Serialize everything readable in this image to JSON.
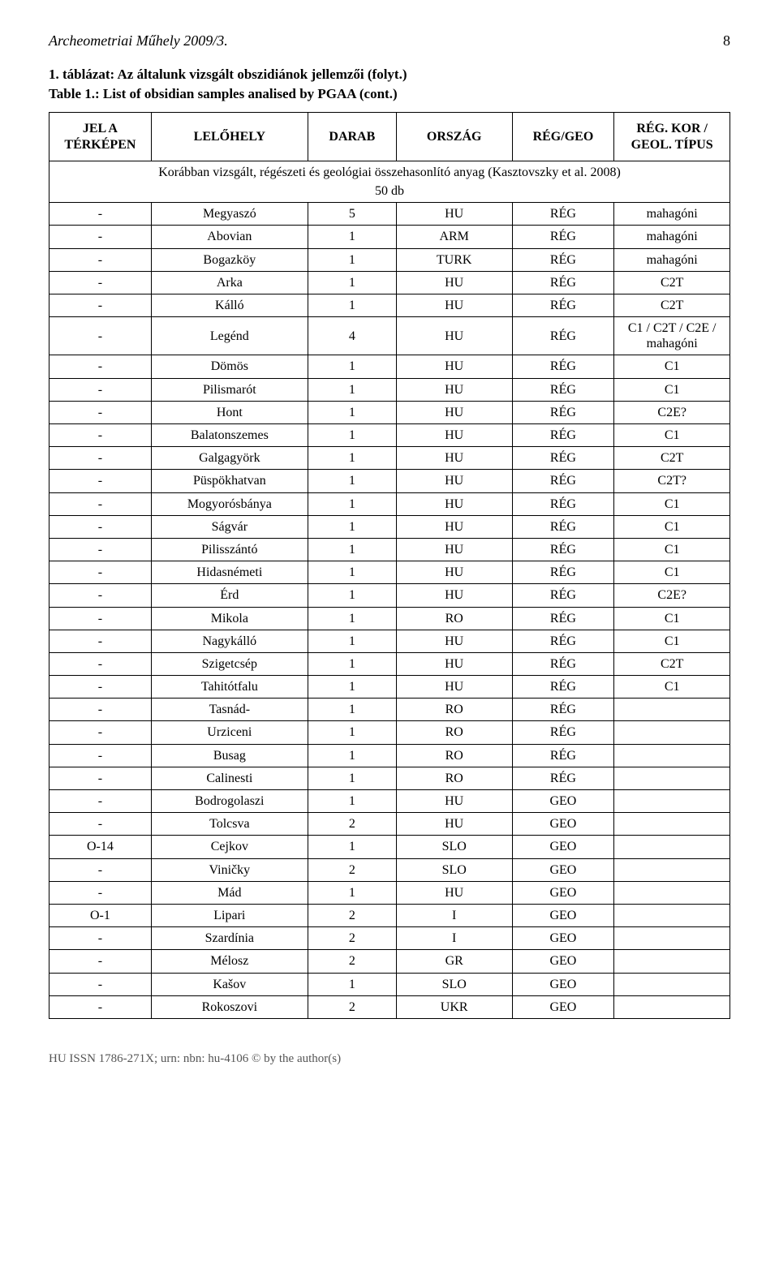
{
  "header": {
    "journal": "Archeometriai Műhely 2009/3.",
    "page_number": "8"
  },
  "captions": {
    "line1": "1. táblázat: Az általunk vizsgált obszidiánok jellemzői (folyt.)",
    "line2": "Table 1.: List of obsidian samples analised by PGAA (cont.)"
  },
  "table": {
    "headers": [
      "JEL A TÉRKÉPEN",
      "LELŐHELY",
      "DARAB",
      "ORSZÁG",
      "RÉG/GEO",
      "RÉG. KOR / GEOL. TÍPUS"
    ],
    "subheader": {
      "text": "Korábban vizsgált, régészeti és geológiai összehasonlító anyag (Kasztovszky et al. 2008)",
      "qty": "50 db"
    },
    "rows": [
      [
        "-",
        "Megyaszó",
        "5",
        "HU",
        "RÉG",
        "mahagóni"
      ],
      [
        "-",
        "Abovian",
        "1",
        "ARM",
        "RÉG",
        "mahagóni"
      ],
      [
        "-",
        "Bogazköy",
        "1",
        "TURK",
        "RÉG",
        "mahagóni"
      ],
      [
        "-",
        "Arka",
        "1",
        "HU",
        "RÉG",
        "C2T"
      ],
      [
        "-",
        "Kálló",
        "1",
        "HU",
        "RÉG",
        "C2T"
      ],
      [
        "-",
        "Legénd",
        "4",
        "HU",
        "RÉG",
        "C1 / C2T / C2E / mahagóni"
      ],
      [
        "-",
        "Dömös",
        "1",
        "HU",
        "RÉG",
        "C1"
      ],
      [
        "-",
        "Pilismarót",
        "1",
        "HU",
        "RÉG",
        "C1"
      ],
      [
        "-",
        "Hont",
        "1",
        "HU",
        "RÉG",
        "C2E?"
      ],
      [
        "-",
        "Balatonszemes",
        "1",
        "HU",
        "RÉG",
        "C1"
      ],
      [
        "-",
        "Galgagyörk",
        "1",
        "HU",
        "RÉG",
        "C2T"
      ],
      [
        "-",
        "Püspökhatvan",
        "1",
        "HU",
        "RÉG",
        "C2T?"
      ],
      [
        "-",
        "Mogyorósbánya",
        "1",
        "HU",
        "RÉG",
        "C1"
      ],
      [
        "-",
        "Ságvár",
        "1",
        "HU",
        "RÉG",
        "C1"
      ],
      [
        "-",
        "Pilisszántó",
        "1",
        "HU",
        "RÉG",
        "C1"
      ],
      [
        "-",
        "Hidasnémeti",
        "1",
        "HU",
        "RÉG",
        "C1"
      ],
      [
        "-",
        "Érd",
        "1",
        "HU",
        "RÉG",
        "C2E?"
      ],
      [
        "-",
        "Mikola",
        "1",
        "RO",
        "RÉG",
        "C1"
      ],
      [
        "-",
        "Nagykálló",
        "1",
        "HU",
        "RÉG",
        "C1"
      ],
      [
        "-",
        "Szigetcsép",
        "1",
        "HU",
        "RÉG",
        "C2T"
      ],
      [
        "-",
        "Tahitótfalu",
        "1",
        "HU",
        "RÉG",
        "C1"
      ],
      [
        "-",
        "Tasnád-",
        "1",
        "RO",
        "RÉG",
        ""
      ],
      [
        "-",
        "Urziceni",
        "1",
        "RO",
        "RÉG",
        ""
      ],
      [
        "-",
        "Busag",
        "1",
        "RO",
        "RÉG",
        ""
      ],
      [
        "-",
        "Calinesti",
        "1",
        "RO",
        "RÉG",
        ""
      ],
      [
        "-",
        "Bodrogolaszi",
        "1",
        "HU",
        "GEO",
        ""
      ],
      [
        "-",
        "Tolcsva",
        "2",
        "HU",
        "GEO",
        ""
      ],
      [
        "O-14",
        "Cejkov",
        "1",
        "SLO",
        "GEO",
        ""
      ],
      [
        "-",
        "Viničky",
        "2",
        "SLO",
        "GEO",
        ""
      ],
      [
        "-",
        "Mád",
        "1",
        "HU",
        "GEO",
        ""
      ],
      [
        "O-1",
        "Lipari",
        "2",
        "I",
        "GEO",
        ""
      ],
      [
        "-",
        "Szardínia",
        "2",
        "I",
        "GEO",
        ""
      ],
      [
        "-",
        "Mélosz",
        "2",
        "GR",
        "GEO",
        ""
      ],
      [
        "-",
        "Kašov",
        "1",
        "SLO",
        "GEO",
        ""
      ],
      [
        "-",
        "Rokoszovi",
        "2",
        "UKR",
        "GEO",
        ""
      ]
    ]
  },
  "footer": "HU ISSN 1786-271X; urn: nbn: hu-4106 © by the author(s)"
}
